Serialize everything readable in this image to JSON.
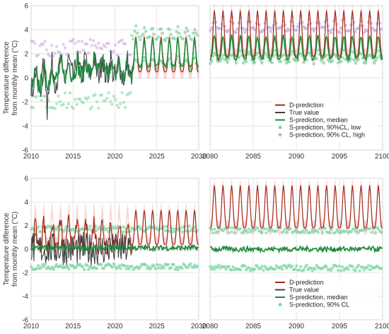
{
  "colors": {
    "d_prediction": "#a52a1a",
    "d_band": "#f4b6b6",
    "true_value": "#404040",
    "s_median": "#1f8a3c",
    "s_ci": "#7fd6a3",
    "s_ci_high": "#c9a8e0",
    "grid": "#d9d9d9"
  },
  "chart_data": [
    {
      "id": "top-left",
      "type": "line",
      "xlim": [
        2010,
        2030
      ],
      "ylim": [
        -6,
        6
      ],
      "xticks": [
        "2010",
        "2015",
        "2020",
        "2025",
        "2030"
      ],
      "yticks": [
        "-6",
        "-4",
        "-2",
        "0",
        "2",
        "4",
        "6"
      ],
      "ylabel": [
        "Temperature difference",
        "from monthly mean (°C)"
      ],
      "grid": true,
      "observed_until": 2022,
      "true_trend": [
        [
          2010,
          -0.4
        ],
        [
          2014,
          0.7
        ],
        [
          2018,
          1.0
        ],
        [
          2022,
          0.5
        ]
      ],
      "true_noise": 1.1,
      "d_prediction": {
        "start": 2022,
        "end": 2030,
        "trough": 0.5,
        "peak": 3.4,
        "period": 1
      },
      "s_median_future": {
        "trough": 1.0,
        "peak": 3.2
      },
      "s_low_level": 0.9,
      "s_high_level": 3.3
    },
    {
      "id": "top-right",
      "type": "line",
      "xlim": [
        2080,
        2100
      ],
      "ylim": [
        -6,
        6
      ],
      "xticks": [
        "2080",
        "2085",
        "2090",
        "2095",
        "2100"
      ],
      "grid": true,
      "d_prediction": {
        "trough": 1.8,
        "peak": 5.6,
        "period": 1
      },
      "s_median": {
        "trough": 1.6,
        "peak": 3.5
      },
      "s_low_level": 1.4,
      "s_high_level": 4.0,
      "legend": {
        "position": "bottom-right",
        "entries": [
          {
            "label": "D-prediction",
            "kind": "line",
            "color_key": "d_prediction"
          },
          {
            "label": "True value",
            "kind": "line",
            "color_key": "true_value"
          },
          {
            "label": "S-prediction, median",
            "kind": "line",
            "color_key": "s_median"
          },
          {
            "label": "S-prediction, 90%CL, low",
            "kind": "dot",
            "color_key": "s_ci"
          },
          {
            "label": "S-prediction, 90% CL, high",
            "kind": "dot",
            "color_key": "s_ci_high"
          }
        ]
      }
    },
    {
      "id": "bottom-left",
      "type": "line",
      "xlim": [
        2010,
        2030
      ],
      "ylim": [
        -6,
        6
      ],
      "xticks": [
        "2010",
        "2015",
        "2020",
        "2025",
        "2030"
      ],
      "yticks": [
        "-6",
        "-4",
        "-2",
        "0",
        "2",
        "4",
        "6"
      ],
      "ylabel": [
        "Temperature difference",
        "from monthly mean (°C)"
      ],
      "grid": true,
      "observed_until": 2022,
      "true_trend": [
        [
          2010,
          0.0
        ],
        [
          2022,
          0.0
        ]
      ],
      "true_noise": 1.4,
      "d_prediction": {
        "start": 2010,
        "end": 2030,
        "trough": 0.4,
        "peak": 3.3,
        "period": 1
      },
      "s_median_level": 0.1,
      "s_low_level": -1.5,
      "s_high_level": 1.7
    },
    {
      "id": "bottom-right",
      "type": "line",
      "xlim": [
        2080,
        2100
      ],
      "ylim": [
        -6,
        6
      ],
      "xticks": [
        "2080",
        "2085",
        "2090",
        "2095",
        "2100"
      ],
      "grid": true,
      "d_prediction": {
        "trough": 1.8,
        "peak": 5.4,
        "period": 1
      },
      "s_median_level": 0.0,
      "s_low_level": -1.6,
      "s_high_level": 1.6,
      "legend": {
        "position": "bottom-right",
        "entries": [
          {
            "label": "D-prediction",
            "kind": "line",
            "color_key": "d_prediction"
          },
          {
            "label": "True value",
            "kind": "line",
            "color_key": "true_value"
          },
          {
            "label": "S-prediction, median",
            "kind": "line",
            "color_key": "s_median"
          },
          {
            "label": "S-prediction, 90% CL",
            "kind": "dot",
            "color_key": "s_ci"
          }
        ]
      }
    }
  ]
}
